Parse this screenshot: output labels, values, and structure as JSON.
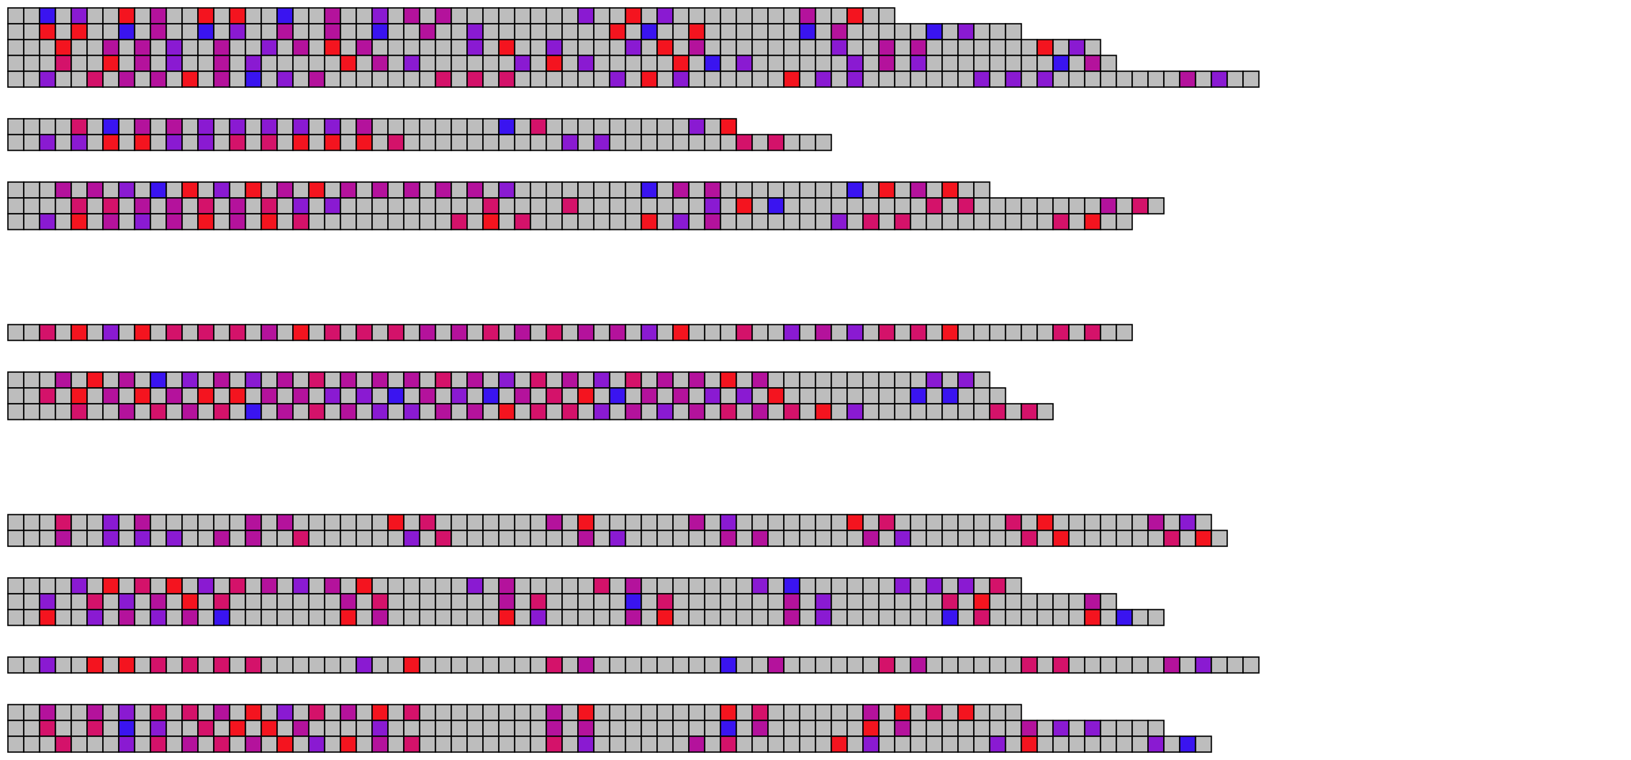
{
  "palette": {
    "g": "#bdbdbd",
    "b": "#3a14f0",
    "v": "#8a1ad2",
    "m": "#b4129c",
    "c": "#d4126a",
    "r": "#f4141f"
  },
  "groups": [
    {
      "rows": [
        "ggbgvggrgmggrgrggbggmggvgmgmggggggggvggrgvggggggggmggrgg",
        "ggrgrggbgmggbgvggmggmggbggmggvggggggggrgbggrggggggbgmgggggbgvggg",
        "gggrggmgmgvggmggvgmgrgmggggggvgrggvggggvgrgmggggggggvggmgmgggggggrgvg",
        "gggcggrgmgvggmgvgggggrgmgvggggggvgrgvgggggrgbgvggggggvgmgvggggggggbgmg",
        "ggvggcgmgmgrgmgbgvgmgggggggcgcgcggggggvgrgvggggggrgvgvgggggggvgvgvggggggggmgvgg"
      ]
    },
    {
      "rows": [
        "ggggcgbgmgmgvgvgvgvgvgmggggggggbgcgggggggggvgr",
        "ggvgvgrgrgvgvgcgcgrgrgrgcggggggggggvgvggggggggcgcggg"
      ]
    },
    {
      "rows": [
        "gggmgmgvgbgrgvgrgmgrgmgmgmgmgmgvggggggggbgmgmggggggggbgrgmgrgg",
        "ggggcgcgmgmgcgmgcgvgvgggggggggcggggcggggggggvgrgbgggggggggcgcggggggggmgcg",
        "ggvgrgmgvgmgrgmgrgcgggggggggcgrgcgggggggrgvgmgggggggvgcgcgggggggggcgrgg"
      ]
    },
    {
      "rows": []
    },
    {
      "rows": [
        "ggcgrgvgrgcgcgcgmgrgcgcgcgmgmgcgmgcgmgmgvgrgggcggvgmgvgcgcgrggggggcgcgg"
      ]
    },
    {
      "rows": [
        "gggmgrgmgbgvgmgvgmgcgmgmgmgcgmgvgcgmgvgcgmgmgrgmggggggggggvgvg",
        "ggcgrgmgrgmgrgrgmgmgvgvgbgmgvgbgmgcgrgbgmgmgvgvgrggggggggbgbggg",
        "ggggcggmgcgmgcgbgmgcgmgvgvgmgmgrgcgcgvgmgvgmgcgmgcgrgvggggggggcgcg"
      ]
    },
    {
      "rows": []
    },
    {
      "rows": [
        "gggcggvgmggggggmgmggggggrgcgggggggmgrggggggmgvgggggggrgcgggggggcgrggggggmgvg",
        "gggmggvgvgvggmgmggcggggggvgcggggggggmgvggggggmgmggggggmgvgggggggcgrggggggcgrg"
      ]
    },
    {
      "rows": [
        "ggggvgrgcgrgvgcgmgvgmgrggggggvgmgggggcgmgggggggvgbggggggvgvgvgcg",
        "ggvggcgvgmgrgcgggggggmgcgggggggmgcgggggbgcgggggggmgvgggggggcgrggggggmg",
        "ggrggvgmgvgmgbgggggggrgmgggggggrgvgggggmgrgggggggmgvgggggggbgcggggggrgbgg"
      ]
    },
    {
      "rows": [
        "ggvggrgrgcgcgcgcggggggvggrggggggggcgmggggggggbggmggggggcgmggggggcgcggggggmgvggg"
      ]
    },
    {
      "rows": [
        "ggmggmgvgcgcgmgrgvgcgmgrgcggggggggmgrggggggggrgcggggggmgrgcgrggg",
        "ggcggcgbgvggcgrgrgmggggvggggggggggmgmggggggggbgmggggggrgmgggggggmgvgvgggg",
        "gggcgggvgcgmgcgmgrgvgrgmgcggggggggcgvggggggmgcggggggrgvgggggggvgrgggggggvgbg"
      ]
    }
  ]
}
